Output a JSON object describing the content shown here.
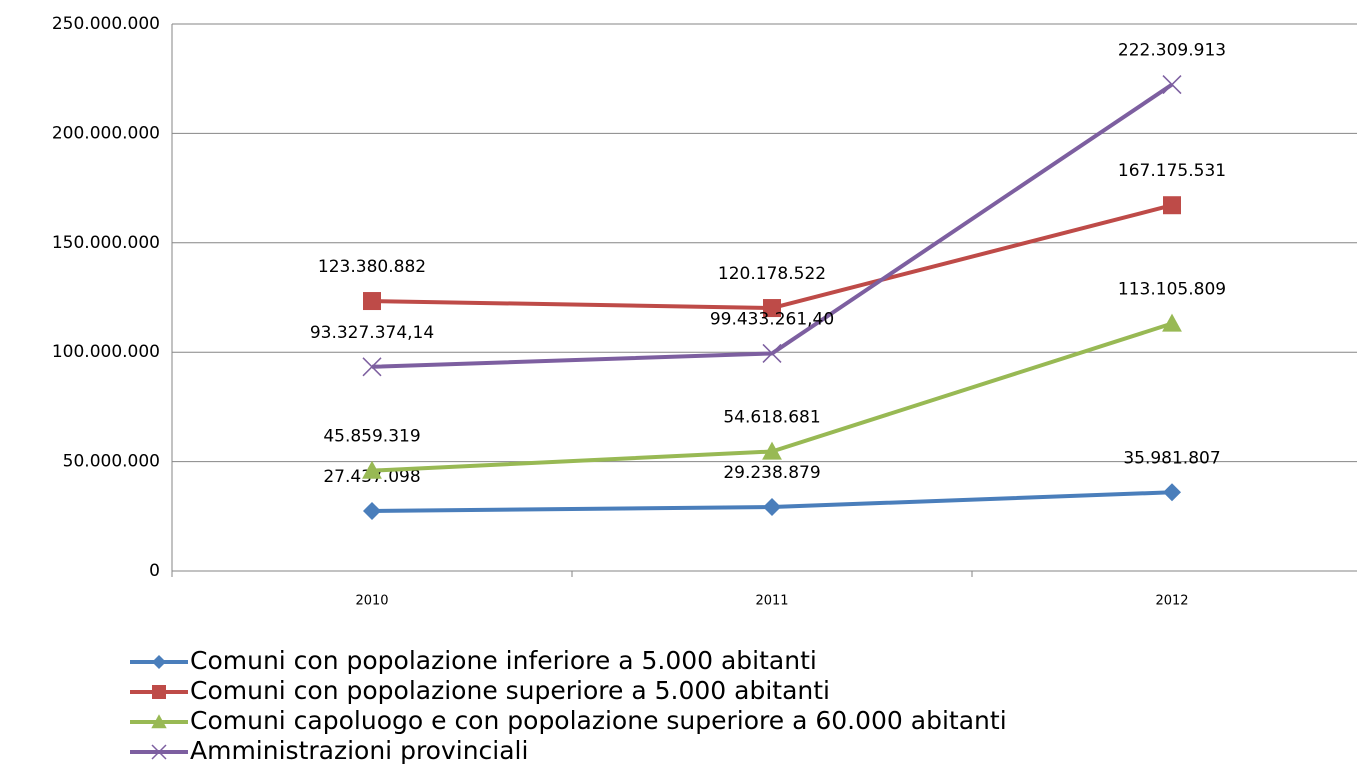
{
  "chart_data": {
    "type": "line",
    "categories": [
      "2010",
      "2011",
      "2012"
    ],
    "series": [
      {
        "name": "Comuni con popolazione inferiore a 5.000 abitanti",
        "color": "#4a7ebb",
        "marker": "diamond",
        "values": [
          27437098,
          29238879,
          35981807
        ],
        "value_labels": [
          "27.437.098",
          "29.238.879",
          "35.981.807"
        ]
      },
      {
        "name": "Comuni con popolazione superiore a 5.000 abitanti",
        "color": "#be4b48",
        "marker": "square",
        "values": [
          123380882,
          120178522,
          167175531
        ],
        "value_labels": [
          "123.380.882",
          "120.178.522",
          "167.175.531"
        ]
      },
      {
        "name": "Comuni capoluogo e con popolazione superiore a 60.000 abitanti",
        "color": "#98b954",
        "marker": "triangle",
        "values": [
          45859319,
          54618681,
          113105809
        ],
        "value_labels": [
          "45.859.319",
          "54.618.681",
          "113.105.809"
        ]
      },
      {
        "name": "Amministrazioni provinciali",
        "color": "#7d5fa0",
        "marker": "x",
        "values": [
          93327374.14,
          99433261.4,
          222309913
        ],
        "value_labels": [
          "93.327.374,14",
          "99.433.261,40",
          "222.309.913"
        ]
      }
    ],
    "ylim": [
      0,
      250000000
    ],
    "yticks": [
      0,
      {
        "value": 50000000,
        "label": "50.000.000"
      },
      {
        "value": 100000000,
        "label": "100.000.000"
      },
      {
        "value": 150000000,
        "label": "150.000.000"
      },
      {
        "value": 200000000,
        "label": "200.000.000"
      },
      {
        "value": 250000000,
        "label": "250.000.000"
      }
    ],
    "grid": true,
    "legend": "bottom"
  }
}
